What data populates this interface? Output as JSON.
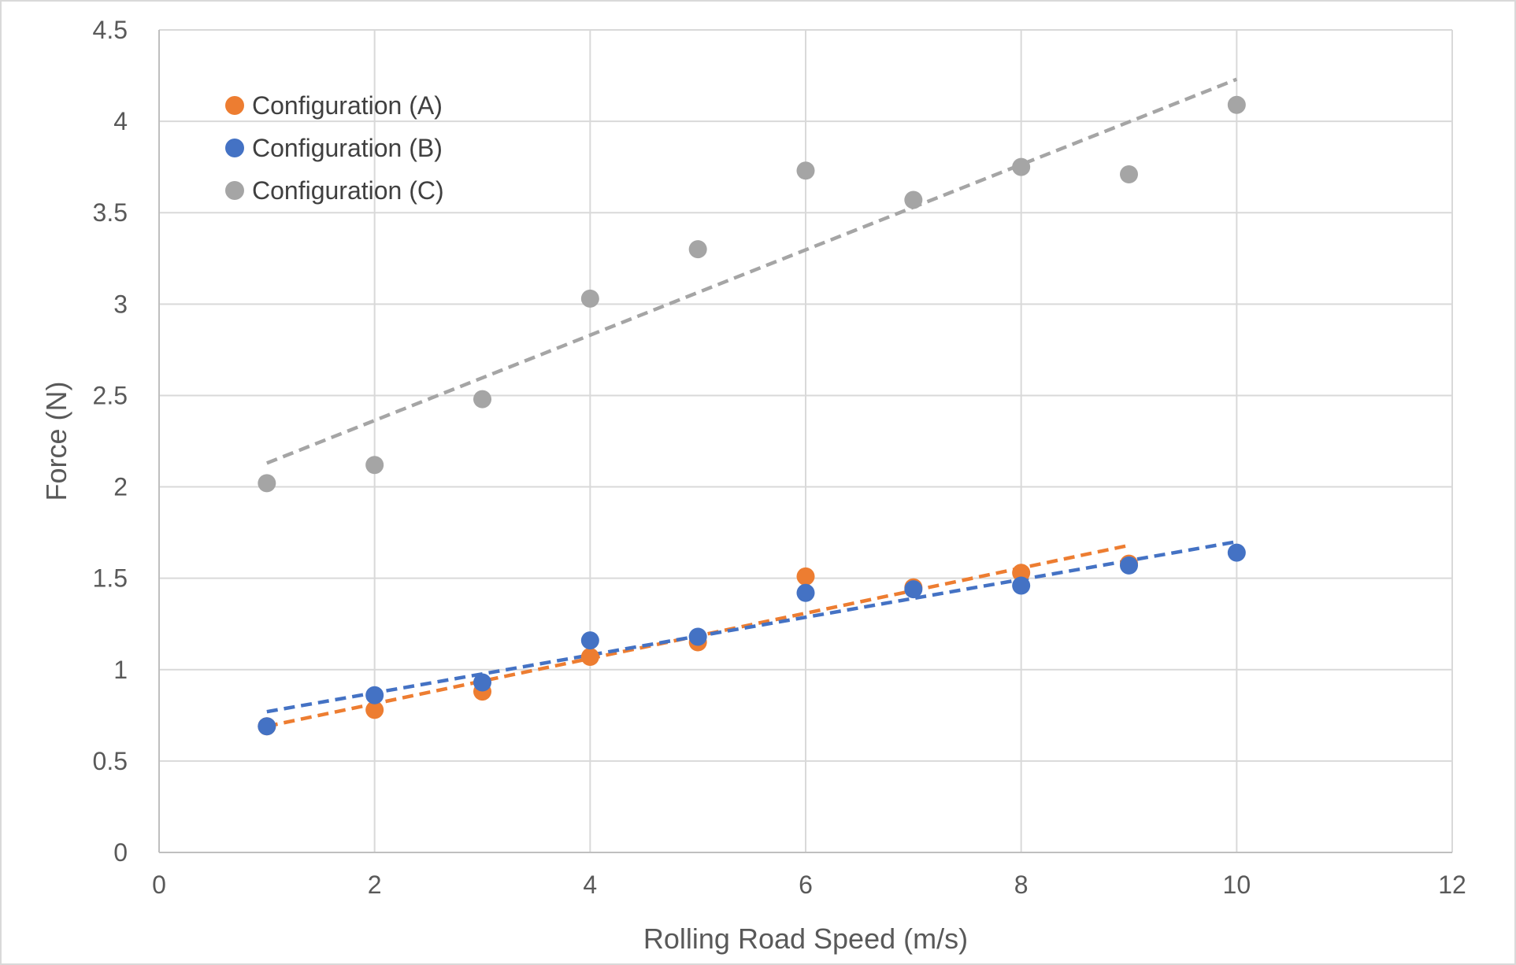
{
  "chart_data": {
    "type": "scatter",
    "title": "",
    "xlabel": "Rolling Road Speed (m/s)",
    "ylabel": "Force (N)",
    "xlim": [
      0,
      12
    ],
    "ylim": [
      0,
      4.5
    ],
    "x_ticks": [
      "0",
      "2",
      "4",
      "6",
      "8",
      "10",
      "12"
    ],
    "y_ticks": [
      "0",
      "0.5",
      "1",
      "1.5",
      "2",
      "2.5",
      "3",
      "3.5",
      "4",
      "4.5"
    ],
    "x_tick_values": [
      0,
      2,
      4,
      6,
      8,
      10,
      12
    ],
    "y_tick_values": [
      0,
      0.5,
      1,
      1.5,
      2,
      2.5,
      3,
      3.5,
      4,
      4.5
    ],
    "grid": true,
    "legend_position": "top-left",
    "series": [
      {
        "name": "Configuration (A)",
        "color": "#ED7D31",
        "x": [
          1,
          2,
          3,
          4,
          5,
          6,
          7,
          8,
          9
        ],
        "y": [
          0.69,
          0.78,
          0.88,
          1.07,
          1.15,
          1.51,
          1.45,
          1.53,
          1.58
        ],
        "trendline": {
          "x": [
            1,
            9
          ],
          "y": [
            0.69,
            1.68
          ],
          "style": "dashed"
        }
      },
      {
        "name": "Configuration (B)",
        "color": "#4472C4",
        "x": [
          1,
          2,
          3,
          4,
          5,
          6,
          7,
          8,
          9,
          10
        ],
        "y": [
          0.69,
          0.86,
          0.93,
          1.16,
          1.18,
          1.42,
          1.44,
          1.46,
          1.57,
          1.64
        ],
        "trendline": {
          "x": [
            1,
            10
          ],
          "y": [
            0.77,
            1.7
          ],
          "style": "dashed"
        }
      },
      {
        "name": "Configuration (C)",
        "color": "#A5A5A5",
        "x": [
          1,
          2,
          3,
          4,
          5,
          6,
          7,
          8,
          9,
          10
        ],
        "y": [
          2.02,
          2.12,
          2.48,
          3.03,
          3.3,
          3.73,
          3.57,
          3.75,
          3.71,
          4.09
        ],
        "trendline": {
          "x": [
            1,
            10
          ],
          "y": [
            2.13,
            4.23
          ],
          "style": "dashed"
        }
      }
    ]
  }
}
